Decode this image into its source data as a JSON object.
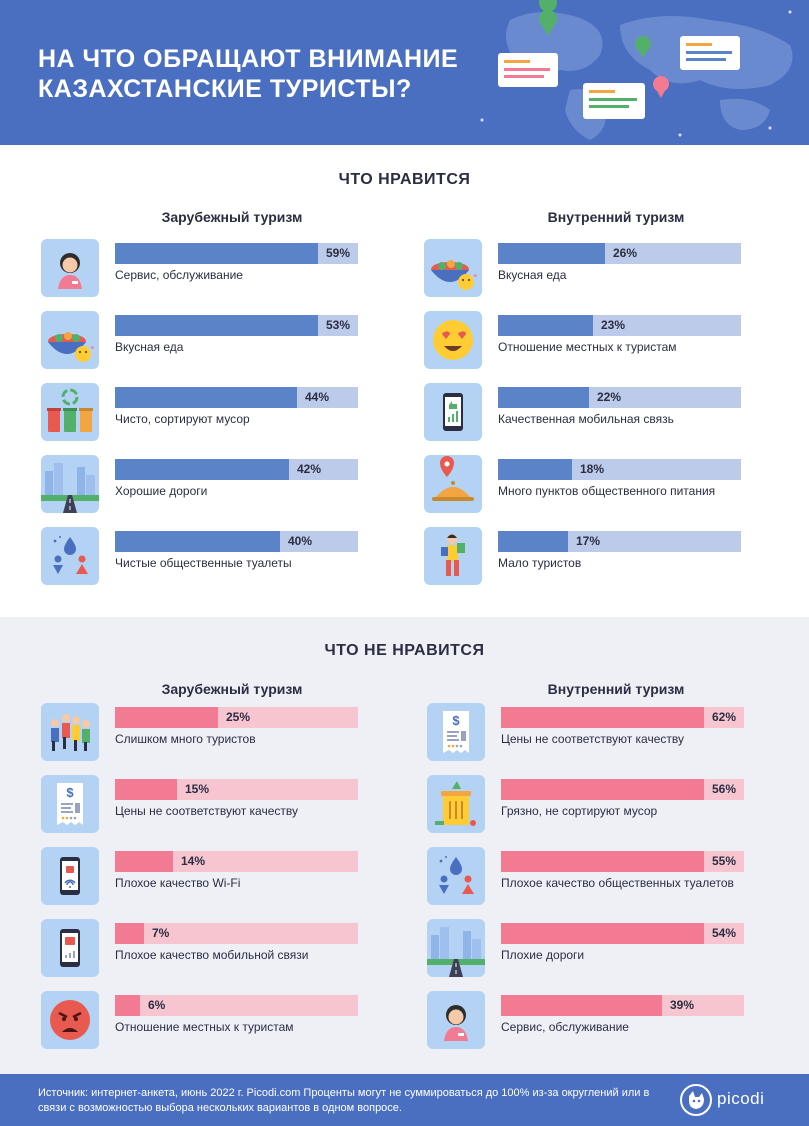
{
  "header": {
    "title": "НА ЧТО ОБРАЩАЮТ ВНИМАНИЕ КАЗАХСТАНСКИЕ ТУРИСТЫ?"
  },
  "colors": {
    "header_blue": "#4a6fc0",
    "like_fill": "#5b83c8",
    "like_track": "#bccbea",
    "dislike_fill": "#f27a92",
    "dislike_track": "#f7c5cf",
    "icon_bg": "#b4d3f4"
  },
  "like": {
    "title": "ЧТО НРАВИТСЯ",
    "foreign": {
      "title": "Зарубежный туризм",
      "items": [
        {
          "label": "Сервис, обслуживание",
          "value": 59,
          "pct": "59%",
          "icon": "woman-service-icon"
        },
        {
          "label": "Вкусная еда",
          "value": 53,
          "pct": "53%",
          "icon": "food-bowl-icon"
        },
        {
          "label": "Чисто, сортируют мусор",
          "value": 44,
          "pct": "44%",
          "icon": "recycle-bins-icon"
        },
        {
          "label": "Хорошие дороги",
          "value": 42,
          "pct": "42%",
          "icon": "city-road-icon"
        },
        {
          "label": "Чистые общественные туалеты",
          "value": 40,
          "pct": "40%",
          "icon": "toilet-icon"
        }
      ]
    },
    "domestic": {
      "title": "Внутренний туризм",
      "items": [
        {
          "label": "Вкусная еда",
          "value": 26,
          "pct": "26%",
          "icon": "food-bowl-icon"
        },
        {
          "label": "Отношение местных к туристам",
          "value": 23,
          "pct": "23%",
          "icon": "heart-eyes-icon"
        },
        {
          "label": "Качественная мобильная связь",
          "value": 22,
          "pct": "22%",
          "icon": "phone-signal-icon"
        },
        {
          "label": "Много пунктов общественного питания",
          "value": 18,
          "pct": "18%",
          "icon": "food-location-icon"
        },
        {
          "label": "Мало туристов",
          "value": 17,
          "pct": "17%",
          "icon": "tourist-icon"
        }
      ]
    }
  },
  "dislike": {
    "title": "ЧТО НЕ НРАВИТСЯ",
    "foreign": {
      "title": "Зарубежный туризм",
      "items": [
        {
          "label": "Слишком много туристов",
          "value": 25,
          "pct": "25%",
          "icon": "crowd-icon"
        },
        {
          "label": "Цены не соответствуют качеству",
          "value": 15,
          "pct": "15%",
          "icon": "receipt-icon"
        },
        {
          "label": "Плохое качество Wi-Fi",
          "value": 14,
          "pct": "14%",
          "icon": "phone-wifi-icon"
        },
        {
          "label": "Плохое качество мобильной связи",
          "value": 7,
          "pct": "7%",
          "icon": "phone-thumbs-down-icon"
        },
        {
          "label": "Отношение местных к туристам",
          "value": 6,
          "pct": "6%",
          "icon": "angry-face-icon"
        }
      ]
    },
    "domestic": {
      "title": "Внутренний туризм",
      "items": [
        {
          "label": "Цены не соответствуют качеству",
          "value": 62,
          "pct": "62%",
          "icon": "receipt-icon"
        },
        {
          "label": "Грязно, не сортируют мусор",
          "value": 56,
          "pct": "56%",
          "icon": "trash-bin-icon"
        },
        {
          "label": "Плохое качество общественных туалетов",
          "value": 55,
          "pct": "55%",
          "icon": "toilet-icon"
        },
        {
          "label": "Плохие дороги",
          "value": 54,
          "pct": "54%",
          "icon": "city-road-icon"
        },
        {
          "label": "Сервис, обслуживание",
          "value": 39,
          "pct": "39%",
          "icon": "woman-service-icon"
        }
      ]
    }
  },
  "footer": {
    "source": "Источник: интернет-анкета, июнь 2022 г. Picodi.com Проценты могут не суммироваться до 100% из-за округлений или в связи с возможностью выбора нескольких вариантов в одном вопросе.",
    "logo_text": "picodi"
  }
}
